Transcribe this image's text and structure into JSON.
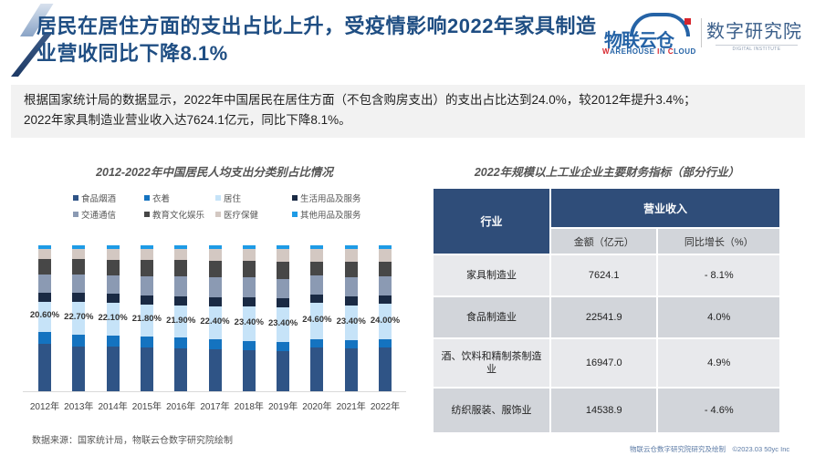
{
  "header": {
    "title": "居民在居住方面的支出占比上升，受疫情影响2022年家具制造业营收同比下降8.1%",
    "logo1_cn": "物联云仓",
    "logo1_en_parts": [
      "W",
      "AREHOUSE ",
      "I",
      "N ",
      "C",
      "LOUD"
    ],
    "logo2_cn": "数字研究院",
    "logo2_en": "DIGITAL INSTITUTE"
  },
  "summary": {
    "line1": "根据国家统计局的数据显示，2022年中国居民在居住方面（不包含购房支出）的支出占比达到24.0%，较2012年提升3.4%；",
    "line2": "2022年家具制造业营业收入达7624.1亿元，同比下降8.1%。"
  },
  "colors": {
    "food": "#2f5486",
    "clothing": "#1473c0",
    "housing": "#c6e3f8",
    "daily": "#1a2a44",
    "transport": "#8b9ab3",
    "education": "#474747",
    "health": "#d3c8c2",
    "other": "#1e9be6",
    "title_blue": "#1f4e83",
    "table_header": "#2f4d79"
  },
  "chart_data": {
    "type": "bar",
    "stacked": true,
    "title": "2012-2022年中国居民人均支出分类别占比情况",
    "xlabel": "",
    "ylabel": "",
    "ylim": [
      0,
      100
    ],
    "legend_position": "top",
    "categories": [
      "2012年",
      "2013年",
      "2014年",
      "2015年",
      "2016年",
      "2017年",
      "2018年",
      "2019年",
      "2020年",
      "2021年",
      "2022年"
    ],
    "series": [
      {
        "name": "食品烟酒",
        "key": "food",
        "values": [
          33.0,
          31.2,
          31.0,
          30.6,
          30.1,
          29.3,
          28.4,
          28.2,
          30.2,
          29.8,
          30.5
        ]
      },
      {
        "name": "衣着",
        "key": "clothing",
        "values": [
          8.0,
          7.8,
          7.6,
          7.4,
          7.0,
          6.8,
          6.5,
          6.2,
          5.8,
          5.9,
          5.6
        ]
      },
      {
        "name": "居住",
        "key": "housing",
        "values": [
          20.6,
          22.7,
          22.1,
          21.8,
          21.9,
          22.4,
          23.4,
          23.4,
          24.6,
          23.4,
          24.0
        ]
      },
      {
        "name": "生活用品及服务",
        "key": "daily",
        "values": [
          6.0,
          6.1,
          6.1,
          6.1,
          6.1,
          6.1,
          6.2,
          6.0,
          5.9,
          5.9,
          5.8
        ]
      },
      {
        "name": "交通通信",
        "key": "transport",
        "values": [
          12.5,
          12.3,
          12.9,
          13.3,
          13.7,
          13.6,
          13.5,
          13.3,
          13.0,
          13.1,
          13.0
        ]
      },
      {
        "name": "教育文化娱乐",
        "key": "education",
        "values": [
          10.5,
          10.6,
          10.6,
          11.0,
          11.2,
          11.4,
          11.2,
          11.7,
          9.6,
          10.8,
          10.1
        ]
      },
      {
        "name": "医疗保健",
        "key": "health",
        "values": [
          7.0,
          6.9,
          7.2,
          7.4,
          7.6,
          7.9,
          8.5,
          8.8,
          8.7,
          8.8,
          8.6
        ]
      },
      {
        "name": "其他用品及服务",
        "key": "other",
        "values": [
          2.4,
          2.4,
          2.5,
          2.4,
          2.4,
          2.5,
          2.3,
          2.4,
          2.2,
          2.3,
          2.4
        ]
      }
    ],
    "data_labels": {
      "series": "居住",
      "values": [
        "20.60%",
        "22.70%",
        "22.10%",
        "21.80%",
        "21.90%",
        "22.40%",
        "23.40%",
        "23.40%",
        "24.60%",
        "23.40%",
        "24.00%"
      ]
    }
  },
  "table": {
    "title": "2022年规模以上工业企业主要财务指标（部分行业）",
    "header_industry": "行业",
    "header_group": "营业收入",
    "header_amount": "金额（亿元）",
    "header_growth": "同比增长（%）",
    "rows": [
      {
        "industry": "家具制造业",
        "amount": "7624.1",
        "growth": "- 8.1%"
      },
      {
        "industry": "食品制造业",
        "amount": "22541.9",
        "growth": "4.0%"
      },
      {
        "industry": "酒、饮料和精制茶制造业",
        "amount": "16947.0",
        "growth": "4.9%"
      },
      {
        "industry": "纺织服装、服饰业",
        "amount": "14538.9",
        "growth": "- 4.6%"
      }
    ]
  },
  "footer": {
    "source": "数据来源：国家统计局，物联云仓数字研究院绘制",
    "copyright": "物联云仓数字研究院研究及绘制　©2023.03 50yc Inc"
  }
}
